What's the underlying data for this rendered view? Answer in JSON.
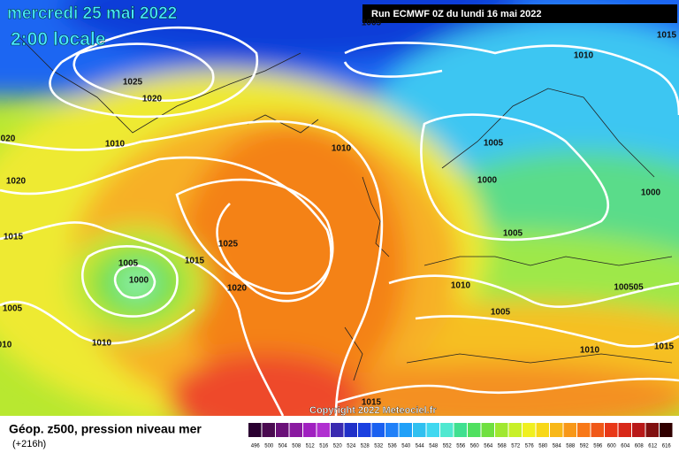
{
  "header": {
    "date": "mercredi 25 mai 2022",
    "time": "2:00 locale",
    "run": "Run ECMWF 0Z du lundi 16 mai 2022"
  },
  "map": {
    "isobar_labels": [
      "1025",
      "1020",
      "1010",
      "020",
      "1020",
      "1015",
      "1005",
      "1000",
      "1015",
      "1025",
      "1020",
      "1005",
      "1010",
      "010",
      "1010",
      "1005",
      "1000",
      "1005",
      "1010",
      "1005",
      "100505",
      "1000",
      "1010",
      "1015",
      "1015",
      "1010",
      "1015",
      "1005"
    ],
    "copyright": "Copyright 2022 Meteociel.fr"
  },
  "legend": {
    "title": "Géop. z500, pression niveau mer",
    "lead": "(+216h)",
    "levels": [
      496,
      500,
      504,
      508,
      512,
      516,
      520,
      524,
      528,
      532,
      536,
      540,
      544,
      548,
      552,
      556,
      560,
      564,
      568,
      572,
      576,
      580,
      584,
      588,
      592,
      596,
      600,
      604,
      608,
      612,
      616
    ],
    "colors": [
      "#2a0030",
      "#4a0a50",
      "#6a1078",
      "#8a1aa0",
      "#a020c0",
      "#b030d0",
      "#3a2ab0",
      "#2030c8",
      "#1a40e0",
      "#1a60f0",
      "#2080f8",
      "#20a0f8",
      "#30c0f0",
      "#40d8f0",
      "#50e8d0",
      "#40e090",
      "#50e060",
      "#70e040",
      "#a0e830",
      "#c8f028",
      "#f0f020",
      "#f8d818",
      "#f8b818",
      "#f89818",
      "#f87818",
      "#f05818",
      "#e83818",
      "#d82818",
      "#b81818",
      "#801010",
      "#300000"
    ]
  }
}
